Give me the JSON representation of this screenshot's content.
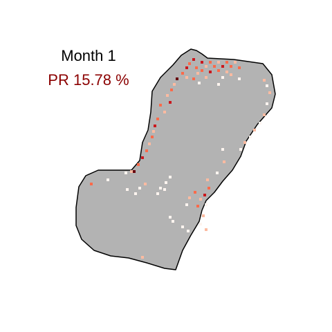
{
  "panel": {
    "month_label": "Month 1",
    "pr_label": "PR 15.78 %"
  },
  "colors": {
    "region_fill": "#b3b3b3",
    "region_border": "#000000",
    "pr_text": "#8b0000",
    "cell_scale": [
      "#fff5f0",
      "#fcbba1",
      "#fb6a4a",
      "#cb181d",
      "#67000d"
    ]
  }
}
